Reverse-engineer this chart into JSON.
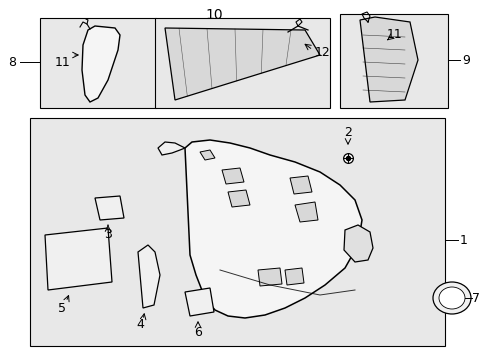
{
  "bg_color": "#ffffff",
  "line_color": "#000000",
  "box_fill": "#e8e8e8",
  "font_size": 9
}
